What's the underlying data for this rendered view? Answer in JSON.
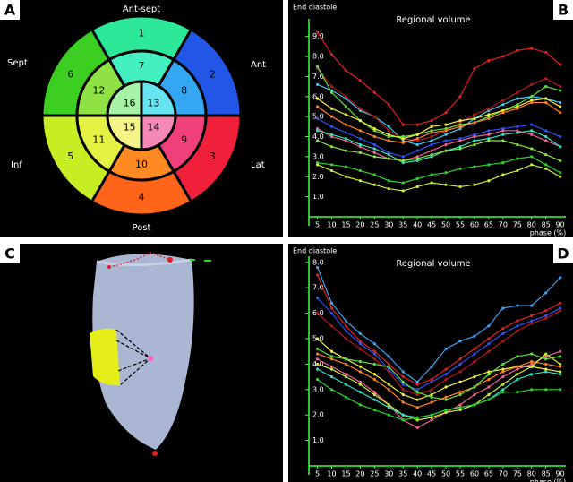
{
  "panel_labels": [
    "A",
    "B",
    "C",
    "D"
  ],
  "bullseye": {
    "directions": {
      "top": "Ant-sept",
      "upper_left": "Sept",
      "upper_right": "Ant",
      "lower_left": "Inf",
      "lower_right": "Lat",
      "bottom": "Post"
    },
    "segments": [
      {
        "label": "1",
        "color": "#2ee89a"
      },
      {
        "label": "2",
        "color": "#2256e6"
      },
      {
        "label": "3",
        "color": "#f0203a"
      },
      {
        "label": "4",
        "color": "#ff6418"
      },
      {
        "label": "5",
        "color": "#c6ee22"
      },
      {
        "label": "6",
        "color": "#3ccf22"
      },
      {
        "label": "7",
        "color": "#44f0c0"
      },
      {
        "label": "8",
        "color": "#34a6f2"
      },
      {
        "label": "9",
        "color": "#f0407c"
      },
      {
        "label": "10",
        "color": "#ff8a22"
      },
      {
        "label": "11",
        "color": "#e4f244"
      },
      {
        "label": "12",
        "color": "#8ee244"
      },
      {
        "label": "13",
        "color": "#66e4f2"
      },
      {
        "label": "14",
        "color": "#f488b6"
      },
      {
        "label": "15",
        "color": "#f4f48a"
      },
      {
        "label": "16",
        "color": "#a6f2a6"
      }
    ]
  },
  "chart_data": [
    {
      "type": "line",
      "title": "Regional volume",
      "y_label": "End diastole",
      "x_label": "phase (%)",
      "x": [
        5,
        10,
        15,
        20,
        25,
        30,
        35,
        40,
        45,
        50,
        55,
        60,
        65,
        70,
        75,
        80,
        85,
        90
      ],
      "xlim": [
        2,
        92
      ],
      "xticks": [
        5,
        10,
        15,
        20,
        25,
        30,
        35,
        40,
        45,
        50,
        55,
        60,
        65,
        70,
        75,
        80,
        85,
        90
      ],
      "ylim": [
        0,
        9.7
      ],
      "yticks": [
        {
          "value": 1,
          "label": "1.0"
        },
        {
          "value": 2,
          "label": "2.0"
        },
        {
          "value": 3,
          "label": "3.0"
        },
        {
          "value": 4,
          "label": "4.0"
        },
        {
          "value": 5,
          "label": "5.0"
        },
        {
          "value": 6,
          "label": "6.0"
        },
        {
          "value": 7,
          "label": "7.0"
        },
        {
          "value": 8,
          "label": "8.0"
        },
        {
          "value": 9,
          "label": "9.0"
        }
      ],
      "axis_color": "#3cff3c",
      "series": [
        {
          "color": "#e02020",
          "values": [
            9.2,
            8.1,
            7.3,
            6.8,
            6.2,
            5.6,
            4.6,
            4.6,
            4.8,
            5.2,
            6.0,
            7.4,
            7.8,
            8.0,
            8.3,
            8.4,
            8.2,
            7.6
          ]
        },
        {
          "color": "#40c8f0",
          "values": [
            6.6,
            6.3,
            5.9,
            5.3,
            5.0,
            4.5,
            3.8,
            3.6,
            3.8,
            4.1,
            4.4,
            4.9,
            5.3,
            5.6,
            5.9,
            6.0,
            5.9,
            5.7
          ]
        },
        {
          "color": "#b01818",
          "values": [
            7.4,
            6.5,
            6.0,
            5.4,
            5.0,
            4.3,
            3.9,
            3.8,
            4.0,
            4.3,
            4.7,
            5.1,
            5.4,
            5.8,
            6.2,
            6.6,
            6.9,
            6.5
          ]
        },
        {
          "color": "#60e040",
          "values": [
            7.5,
            6.2,
            5.5,
            4.8,
            4.3,
            4.0,
            4.0,
            4.1,
            4.3,
            4.4,
            4.6,
            4.7,
            5.0,
            5.3,
            5.6,
            6.0,
            6.5,
            6.3
          ]
        },
        {
          "color": "#f0f040",
          "values": [
            5.9,
            5.4,
            5.1,
            4.8,
            4.4,
            4.1,
            3.9,
            4.1,
            4.5,
            4.6,
            4.8,
            4.9,
            5.1,
            5.3,
            5.5,
            5.8,
            5.9,
            5.5
          ]
        },
        {
          "color": "#ff8020",
          "values": [
            5.5,
            5.0,
            4.6,
            4.3,
            4.0,
            3.8,
            3.7,
            3.9,
            4.2,
            4.3,
            4.5,
            4.7,
            4.9,
            5.2,
            5.4,
            5.7,
            5.7,
            5.2
          ]
        },
        {
          "color": "#3050f0",
          "values": [
            4.9,
            4.5,
            4.2,
            3.9,
            3.6,
            3.2,
            3.0,
            3.3,
            3.6,
            3.8,
            3.9,
            4.1,
            4.3,
            4.4,
            4.5,
            4.6,
            4.3,
            4.0
          ]
        },
        {
          "color": "#f06090",
          "values": [
            4.4,
            4.0,
            3.8,
            3.5,
            3.2,
            2.9,
            2.8,
            3.0,
            3.3,
            3.6,
            3.8,
            4.0,
            4.1,
            4.3,
            4.3,
            4.1,
            3.8,
            3.5
          ]
        },
        {
          "color": "#30e0c0",
          "values": [
            4.3,
            4.1,
            3.9,
            3.6,
            3.4,
            3.1,
            2.7,
            2.8,
            3.0,
            3.3,
            3.5,
            3.8,
            3.9,
            4.1,
            4.2,
            4.3,
            4.0,
            3.5
          ]
        },
        {
          "color": "#90e040",
          "values": [
            3.8,
            3.5,
            3.3,
            3.2,
            3.0,
            2.9,
            2.8,
            2.9,
            3.1,
            3.3,
            3.4,
            3.6,
            3.8,
            3.8,
            3.6,
            3.4,
            3.1,
            2.8
          ]
        },
        {
          "color": "#30d030",
          "values": [
            2.7,
            2.6,
            2.5,
            2.3,
            2.1,
            1.8,
            1.7,
            1.9,
            2.1,
            2.2,
            2.4,
            2.5,
            2.6,
            2.7,
            2.9,
            3.0,
            2.6,
            2.2
          ]
        },
        {
          "color": "#c8f030",
          "values": [
            2.6,
            2.3,
            2.0,
            1.8,
            1.6,
            1.4,
            1.3,
            1.5,
            1.7,
            1.6,
            1.5,
            1.6,
            1.8,
            2.1,
            2.3,
            2.6,
            2.4,
            2.0
          ]
        }
      ]
    },
    {
      "type": "line",
      "title": "Regional volume",
      "y_label": "End diastole",
      "x_label": "phase (%)",
      "x": [
        5,
        10,
        15,
        20,
        25,
        30,
        35,
        40,
        45,
        50,
        55,
        60,
        65,
        70,
        75,
        80,
        85,
        90
      ],
      "xlim": [
        2,
        92
      ],
      "xticks": [
        5,
        10,
        15,
        20,
        25,
        30,
        35,
        40,
        45,
        50,
        55,
        60,
        65,
        70,
        75,
        80,
        85,
        90
      ],
      "ylim": [
        0,
        8.1
      ],
      "yticks": [
        {
          "value": 1,
          "label": "1.0"
        },
        {
          "value": 2,
          "label": "2.0"
        },
        {
          "value": 3,
          "label": "3.0"
        },
        {
          "value": 4,
          "label": "4.0"
        },
        {
          "value": 5,
          "label": "5.0"
        },
        {
          "value": 6,
          "label": "6.0"
        },
        {
          "value": 7,
          "label": "7.0"
        },
        {
          "value": 8,
          "label": "8.0"
        }
      ],
      "axis_color": "#3cff3c",
      "series": [
        {
          "color": "#40a0f0",
          "values": [
            7.8,
            6.4,
            5.7,
            5.2,
            4.8,
            4.3,
            3.7,
            3.3,
            3.9,
            4.6,
            4.9,
            5.1,
            5.5,
            6.2,
            6.3,
            6.3,
            6.8,
            7.4
          ]
        },
        {
          "color": "#e02020",
          "values": [
            7.5,
            6.2,
            5.5,
            4.9,
            4.5,
            4.0,
            3.5,
            3.2,
            3.4,
            3.8,
            4.2,
            4.6,
            5.0,
            5.4,
            5.7,
            5.9,
            6.1,
            6.4
          ]
        },
        {
          "color": "#3050f0",
          "values": [
            6.6,
            6.0,
            5.3,
            4.8,
            4.4,
            3.8,
            3.2,
            3.0,
            3.3,
            3.6,
            4.0,
            4.4,
            4.8,
            5.2,
            5.5,
            5.7,
            5.9,
            6.2
          ]
        },
        {
          "color": "#b01818",
          "values": [
            6.0,
            5.5,
            5.0,
            4.6,
            4.2,
            3.7,
            3.0,
            2.8,
            3.0,
            3.4,
            3.7,
            4.1,
            4.5,
            4.9,
            5.3,
            5.6,
            5.8,
            6.1
          ]
        },
        {
          "color": "#f0f040",
          "values": [
            5.0,
            4.5,
            4.2,
            3.9,
            3.6,
            3.2,
            2.8,
            2.6,
            2.8,
            3.1,
            3.3,
            3.5,
            3.7,
            3.8,
            3.9,
            3.9,
            3.8,
            3.7
          ]
        },
        {
          "color": "#ff8020",
          "values": [
            4.4,
            4.2,
            4.0,
            3.7,
            3.4,
            3.0,
            2.5,
            2.3,
            2.5,
            2.7,
            2.9,
            3.1,
            3.4,
            3.7,
            3.9,
            4.1,
            4.0,
            3.9
          ]
        },
        {
          "color": "#60e040",
          "values": [
            4.6,
            4.3,
            4.2,
            4.1,
            4.0,
            3.9,
            3.3,
            2.9,
            2.7,
            2.6,
            2.8,
            3.1,
            3.6,
            4.0,
            4.3,
            4.4,
            4.2,
            4.3
          ]
        },
        {
          "color": "#f06090",
          "values": [
            4.2,
            3.9,
            3.6,
            3.3,
            2.9,
            2.4,
            1.8,
            1.5,
            1.8,
            2.1,
            2.4,
            2.8,
            3.1,
            3.5,
            3.8,
            4.0,
            4.3,
            4.5
          ]
        },
        {
          "color": "#c8f030",
          "values": [
            4.0,
            3.8,
            3.5,
            3.2,
            2.8,
            2.4,
            2.0,
            1.8,
            1.9,
            2.1,
            2.2,
            2.4,
            2.8,
            3.2,
            3.6,
            3.9,
            4.4,
            4.0
          ]
        },
        {
          "color": "#30e0c0",
          "values": [
            3.8,
            3.5,
            3.2,
            2.9,
            2.6,
            2.3,
            2.0,
            1.9,
            2.0,
            2.2,
            2.3,
            2.4,
            2.6,
            3.0,
            3.4,
            3.6,
            3.7,
            3.6
          ]
        },
        {
          "color": "#30d030",
          "values": [
            3.4,
            3.0,
            2.7,
            2.4,
            2.2,
            2.0,
            1.8,
            1.9,
            2.0,
            2.2,
            2.3,
            2.4,
            2.6,
            2.9,
            2.9,
            3.0,
            3.0,
            3.0
          ]
        }
      ]
    }
  ]
}
